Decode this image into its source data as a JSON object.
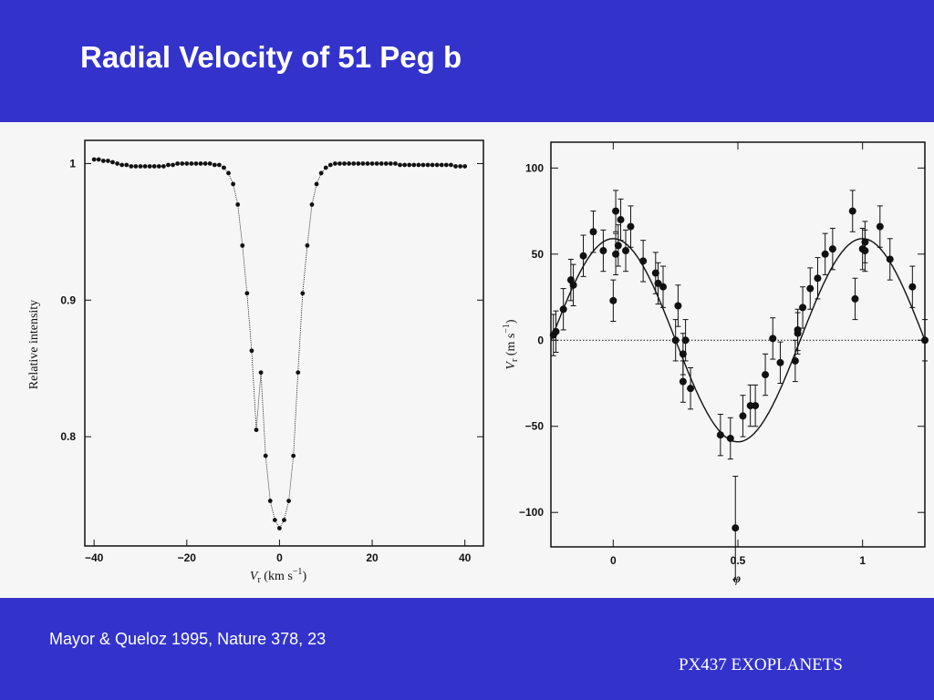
{
  "slide": {
    "title": "Radial Velocity of 51 Peg b",
    "citation": "Mayor & Queloz 1995, Nature 378, 23",
    "footer": "PX437 EXOPLANETS",
    "colors": {
      "background": "#3333cc",
      "panel": "#f6f6f6",
      "text": "#ffffff",
      "ink": "#111111"
    }
  },
  "chart_data": [
    {
      "type": "line",
      "title": "",
      "xlabel": "V_r (km s^-1)",
      "ylabel": "Relative intensity",
      "xlim": [
        -42,
        44
      ],
      "ylim": [
        0.72,
        1.017
      ],
      "x_ticks": [
        -40,
        -20,
        0,
        20,
        40
      ],
      "x_tick_labels": [
        "−40",
        "−20",
        "0",
        "20",
        "40"
      ],
      "y_ticks": [
        0.8,
        0.9,
        1
      ],
      "y_tick_labels": [
        "0.8",
        "0.9",
        "1"
      ],
      "grid": false,
      "series": [
        {
          "x": [
            -40,
            -39,
            -38,
            -37,
            -36,
            -35,
            -34,
            -33,
            -32,
            -31,
            -30,
            -29,
            -28,
            -27,
            -26,
            -25,
            -24,
            -23,
            -22,
            -21,
            -20,
            -19,
            -18,
            -17,
            -16,
            -15,
            -14,
            -13,
            -12,
            -11,
            -10,
            -9,
            -8,
            -7,
            -6,
            -5,
            -4,
            -3,
            -2,
            -1,
            0,
            1,
            2,
            3,
            4,
            5,
            6,
            7,
            8,
            9,
            10,
            11,
            12,
            13,
            14,
            15,
            16,
            17,
            18,
            19,
            20,
            21,
            22,
            23,
            24,
            25,
            26,
            27,
            28,
            29,
            30,
            31,
            32,
            33,
            34,
            35,
            36,
            37,
            38,
            39,
            40
          ],
          "y": [
            1.003,
            1.003,
            1.002,
            1.002,
            1.001,
            1.0,
            0.999,
            0.999,
            0.998,
            0.998,
            0.998,
            0.998,
            0.998,
            0.998,
            0.998,
            0.998,
            0.999,
            0.999,
            1.0,
            1.0,
            1.0,
            1.0,
            1.0,
            1.0,
            1.0,
            1.0,
            0.999,
            0.999,
            0.997,
            0.993,
            0.985,
            0.97,
            0.94,
            0.905,
            0.863,
            0.805,
            0.847,
            0.786,
            0.753,
            0.739,
            0.733,
            0.739,
            0.753,
            0.786,
            0.847,
            0.905,
            0.94,
            0.97,
            0.985,
            0.993,
            0.997,
            0.999,
            1.0,
            1.0,
            1.0,
            1.0,
            1.0,
            1.0,
            1.0,
            1.0,
            1.0,
            1.0,
            1.0,
            1.0,
            1.0,
            1.0,
            0.999,
            0.999,
            0.999,
            0.999,
            0.999,
            0.999,
            0.999,
            0.999,
            0.999,
            0.999,
            0.999,
            0.999,
            0.998,
            0.998,
            0.998
          ]
        }
      ]
    },
    {
      "type": "scatter",
      "title": "",
      "xlabel": "φ",
      "ylabel": "V_r (m s^-1)",
      "xlim": [
        -0.25,
        1.25
      ],
      "ylim": [
        -120,
        115
      ],
      "x_ticks": [
        0,
        0.5,
        1
      ],
      "x_tick_labels": [
        "0",
        "0.5",
        "1"
      ],
      "y_ticks": [
        -100,
        -50,
        0,
        50,
        100
      ],
      "y_tick_labels": [
        "−100",
        "−50",
        "0",
        "50",
        "100"
      ],
      "grid": false,
      "reference_line": {
        "y": 0,
        "style": "dotted"
      },
      "fit_curve": {
        "amplitude": 59,
        "formula": "V = 59 cos(2πφ)"
      },
      "series": [
        {
          "x": [
            -0.24,
            -0.23,
            -0.2,
            -0.17,
            -0.16,
            -0.12,
            -0.08,
            -0.04,
            0.01,
            0.0,
            0.01,
            0.02,
            0.03,
            0.05,
            0.07,
            0.12,
            0.17,
            0.18,
            0.2,
            0.25,
            0.26,
            0.28,
            0.28,
            0.29,
            0.31,
            0.43,
            0.47,
            0.49,
            0.52,
            0.55,
            0.57,
            0.61,
            0.64,
            0.67,
            0.73,
            0.74,
            0.74,
            0.76,
            0.79,
            0.82,
            0.85,
            0.88,
            0.96,
            0.97,
            1.0,
            1.01,
            1.01,
            1.07,
            1.11,
            1.2,
            1.25
          ],
          "y": [
            3,
            5,
            18,
            35,
            32,
            49,
            63,
            52,
            75,
            23,
            50,
            55,
            70,
            52,
            66,
            46,
            39,
            33,
            31,
            0,
            20,
            -8,
            -24,
            0,
            -28,
            -55,
            -57,
            -109,
            -44,
            -38,
            -38,
            -20,
            1,
            -13,
            -12,
            4,
            6,
            19,
            30,
            36,
            50,
            53,
            75,
            24,
            53,
            57,
            52,
            66,
            47,
            31,
            0
          ]
        }
      ]
    }
  ]
}
